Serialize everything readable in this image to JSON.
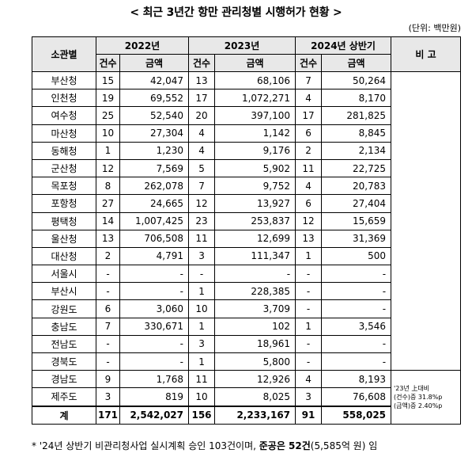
{
  "title": "< 최근 3년간 항만 관리청별 시행허가 현황 >",
  "unit": "(단위: 백만원)",
  "headers": {
    "org": "소관별",
    "y2022": "2022년",
    "y2023": "2023년",
    "y2024": "2024년 상반기",
    "remark": "비 고",
    "count": "건수",
    "amount": "금액"
  },
  "rows": [
    {
      "org": "부산청",
      "c22": "15",
      "a22": "42,047",
      "c23": "13",
      "a23": "68,106",
      "c24": "7",
      "a24": "50,264"
    },
    {
      "org": "인천청",
      "c22": "19",
      "a22": "69,552",
      "c23": "17",
      "a23": "1,072,271",
      "c24": "4",
      "a24": "8,170"
    },
    {
      "org": "여수청",
      "c22": "25",
      "a22": "52,540",
      "c23": "20",
      "a23": "397,100",
      "c24": "17",
      "a24": "281,825"
    },
    {
      "org": "마산청",
      "c22": "10",
      "a22": "27,304",
      "c23": "4",
      "a23": "1,142",
      "c24": "6",
      "a24": "8,845"
    },
    {
      "org": "동해청",
      "c22": "1",
      "a22": "1,230",
      "c23": "4",
      "a23": "9,176",
      "c24": "2",
      "a24": "2,134"
    },
    {
      "org": "군산청",
      "c22": "12",
      "a22": "7,569",
      "c23": "5",
      "a23": "5,902",
      "c24": "11",
      "a24": "22,725"
    },
    {
      "org": "목포청",
      "c22": "8",
      "a22": "262,078",
      "c23": "7",
      "a23": "9,752",
      "c24": "4",
      "a24": "20,783"
    },
    {
      "org": "포항청",
      "c22": "27",
      "a22": "24,665",
      "c23": "12",
      "a23": "13,927",
      "c24": "6",
      "a24": "27,404"
    },
    {
      "org": "평택청",
      "c22": "14",
      "a22": "1,007,425",
      "c23": "23",
      "a23": "253,837",
      "c24": "12",
      "a24": "15,659"
    },
    {
      "org": "울산청",
      "c22": "13",
      "a22": "706,508",
      "c23": "11",
      "a23": "12,699",
      "c24": "13",
      "a24": "31,369"
    },
    {
      "org": "대산청",
      "c22": "2",
      "a22": "4,791",
      "c23": "3",
      "a23": "111,347",
      "c24": "1",
      "a24": "500"
    },
    {
      "org": "서울시",
      "c22": "-",
      "a22": "-",
      "c23": "-",
      "a23": "-",
      "c24": "-",
      "a24": "-"
    },
    {
      "org": "부산시",
      "c22": "-",
      "a22": "-",
      "c23": "1",
      "a23": "228,385",
      "c24": "-",
      "a24": "-"
    },
    {
      "org": "강원도",
      "c22": "6",
      "a22": "3,060",
      "c23": "10",
      "a23": "3,709",
      "c24": "-",
      "a24": "-"
    },
    {
      "org": "충남도",
      "c22": "7",
      "a22": "330,671",
      "c23": "1",
      "a23": "102",
      "c24": "1",
      "a24": "3,546"
    },
    {
      "org": "전남도",
      "c22": "-",
      "a22": "-",
      "c23": "3",
      "a23": "18,961",
      "c24": "-",
      "a24": "-"
    },
    {
      "org": "경북도",
      "c22": "-",
      "a22": "-",
      "c23": "1",
      "a23": "5,800",
      "c24": "-",
      "a24": "-"
    },
    {
      "org": "경남도",
      "c22": "9",
      "a22": "1,768",
      "c23": "11",
      "a23": "12,926",
      "c24": "4",
      "a24": "8,193"
    },
    {
      "org": "제주도",
      "c22": "3",
      "a22": "819",
      "c23": "10",
      "a23": "8,025",
      "c24": "3",
      "a24": "76,608"
    }
  ],
  "total": {
    "org": "계",
    "c22": "171",
    "a22": "2,542,027",
    "c23": "156",
    "a23": "2,233,167",
    "c24": "91",
    "a24": "558,025"
  },
  "remark_note": {
    "line1": "'23년 上대비",
    "line2": "(건수)증 31.8%p",
    "line3": "(금액)증 2.40%p"
  },
  "footnote": {
    "prefix": "* '24년 상반기 비관리청사업 실시계획 승인 103건이며, ",
    "bold": "준공은 52건",
    "suffix": "(5,585억 원) 임"
  }
}
